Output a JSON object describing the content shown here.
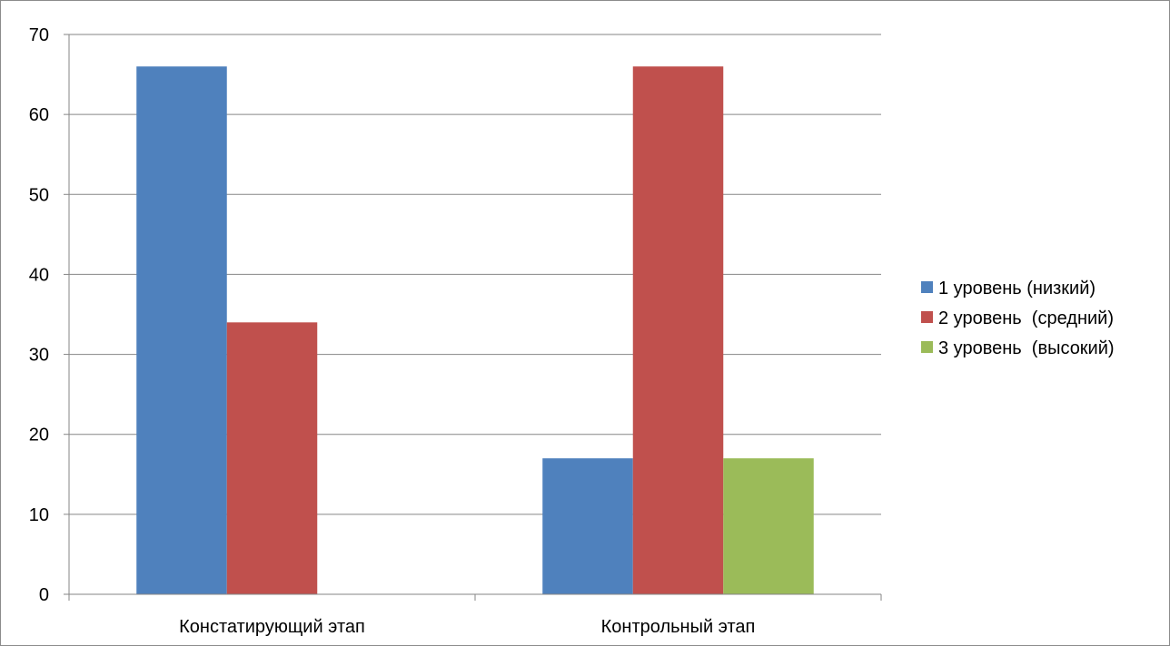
{
  "chart_data": {
    "type": "bar",
    "categories": [
      "Констатирующий этап",
      "Контрольный этап"
    ],
    "series": [
      {
        "name": "1 уровень (низкий)",
        "values": [
          66,
          17
        ],
        "color": "#4F81BD"
      },
      {
        "name": "2 уровень  (средний)",
        "values": [
          34,
          66
        ],
        "color": "#C0504D"
      },
      {
        "name": "3 уровень  (высокий)",
        "values": [
          0,
          17
        ],
        "color": "#9BBB59"
      }
    ],
    "title": "",
    "xlabel": "",
    "ylabel": "",
    "ylim": [
      0,
      70
    ],
    "yticks": [
      0,
      10,
      20,
      30,
      40,
      50,
      60,
      70
    ],
    "grid": true,
    "legend": "right",
    "colors": {
      "axis": "#868686",
      "grid": "#868686",
      "frame": "#8c8c8c"
    }
  }
}
